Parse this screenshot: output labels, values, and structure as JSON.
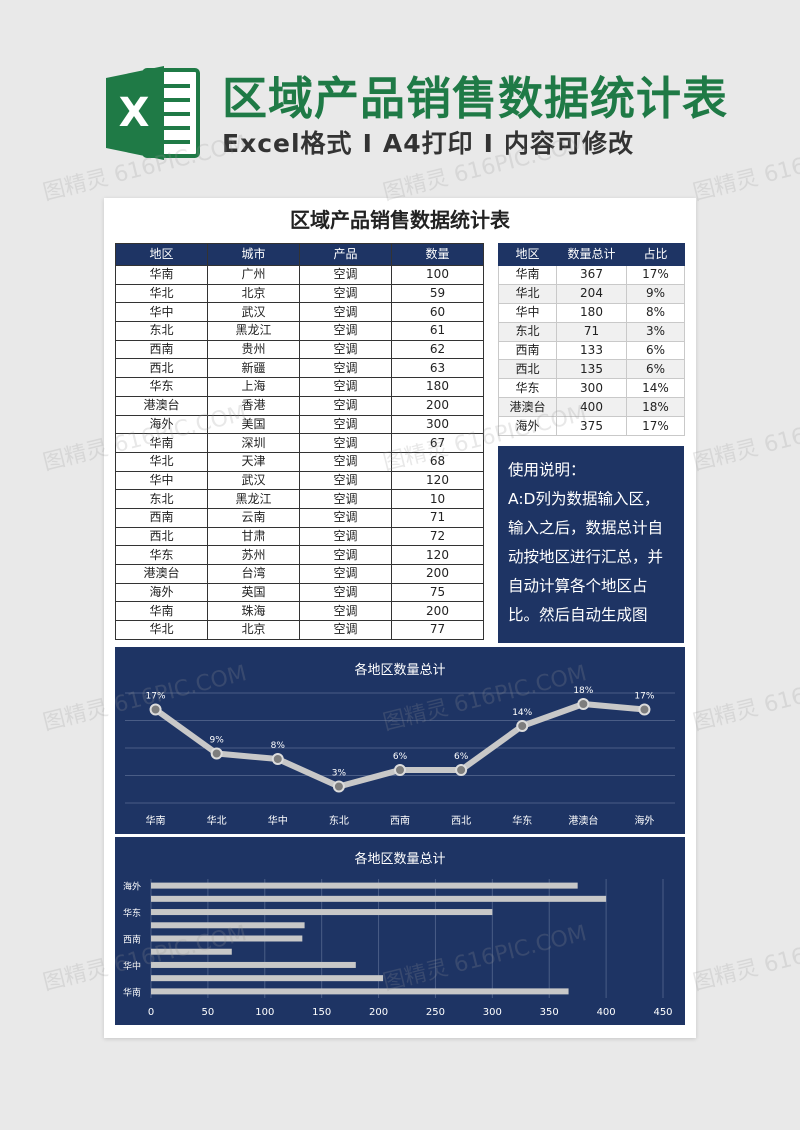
{
  "header": {
    "title": "区域产品销售数据统计表",
    "subtitle_parts": [
      "Excel格式",
      "A4打印",
      "内容可修改"
    ],
    "separator": "I",
    "logo_letter": "X"
  },
  "sheet": {
    "title": "区域产品销售数据统计表",
    "columns": [
      "地区",
      "城市",
      "产品",
      "数量"
    ],
    "rows": [
      [
        "华南",
        "广州",
        "空调",
        "100"
      ],
      [
        "华北",
        "北京",
        "空调",
        "59"
      ],
      [
        "华中",
        "武汉",
        "空调",
        "60"
      ],
      [
        "东北",
        "黑龙江",
        "空调",
        "61"
      ],
      [
        "西南",
        "贵州",
        "空调",
        "62"
      ],
      [
        "西北",
        "新疆",
        "空调",
        "63"
      ],
      [
        "华东",
        "上海",
        "空调",
        "180"
      ],
      [
        "港澳台",
        "香港",
        "空调",
        "200"
      ],
      [
        "海外",
        "美国",
        "空调",
        "300"
      ],
      [
        "华南",
        "深圳",
        "空调",
        "67"
      ],
      [
        "华北",
        "天津",
        "空调",
        "68"
      ],
      [
        "华中",
        "武汉",
        "空调",
        "120"
      ],
      [
        "东北",
        "黑龙江",
        "空调",
        "10"
      ],
      [
        "西南",
        "云南",
        "空调",
        "71"
      ],
      [
        "西北",
        "甘肃",
        "空调",
        "72"
      ],
      [
        "华东",
        "苏州",
        "空调",
        "120"
      ],
      [
        "港澳台",
        "台湾",
        "空调",
        "200"
      ],
      [
        "海外",
        "英国",
        "空调",
        "75"
      ],
      [
        "华南",
        "珠海",
        "空调",
        "200"
      ],
      [
        "华北",
        "北京",
        "空调",
        "77"
      ]
    ]
  },
  "summary": {
    "columns": [
      "地区",
      "数量总计",
      "占比"
    ],
    "rows": [
      [
        "华南",
        "367",
        "17%"
      ],
      [
        "华北",
        "204",
        "9%"
      ],
      [
        "华中",
        "180",
        "8%"
      ],
      [
        "东北",
        "71",
        "3%"
      ],
      [
        "西南",
        "133",
        "6%"
      ],
      [
        "西北",
        "135",
        "6%"
      ],
      [
        "华东",
        "300",
        "14%"
      ],
      [
        "港澳台",
        "400",
        "18%"
      ],
      [
        "海外",
        "375",
        "17%"
      ]
    ]
  },
  "notes": {
    "lines": [
      "使用说明：",
      "A:D列为数据输入区，",
      "输入之后，数据总计自",
      "动按地区进行汇总，并",
      "自动计算各个地区占",
      "比。然后自动生成图"
    ]
  },
  "watermark": "图精灵 616PIC.COM",
  "colors": {
    "navy": "#1e3464",
    "green": "#1f7a46",
    "line": "#c8c8c8",
    "bar": "#c8c8c8"
  },
  "chart_data": [
    {
      "type": "line",
      "title": "各地区数量总计",
      "categories": [
        "华南",
        "华北",
        "华中",
        "东北",
        "西南",
        "西北",
        "华东",
        "港澳台",
        "海外"
      ],
      "values": [
        17,
        9,
        8,
        3,
        6,
        6,
        14,
        18,
        17
      ],
      "data_labels": [
        "17%",
        "9%",
        "8%",
        "3%",
        "6%",
        "6%",
        "14%",
        "18%",
        "17%"
      ],
      "ylim": [
        0,
        20
      ],
      "grid": true
    },
    {
      "type": "bar",
      "orientation": "horizontal",
      "title": "各地区数量总计",
      "categories": [
        "华南",
        "华北",
        "华中",
        "东北",
        "西南",
        "西北",
        "华东",
        "港澳台",
        "海外"
      ],
      "values": [
        367,
        204,
        180,
        71,
        133,
        135,
        300,
        400,
        375
      ],
      "visible_category_labels": [
        "华南",
        "华中",
        "西南",
        "华东",
        "海外"
      ],
      "xticks": [
        "0",
        "50",
        "100",
        "150",
        "200",
        "250",
        "300",
        "350",
        "400",
        "450"
      ],
      "xlim": [
        0,
        450
      ],
      "grid": true
    }
  ]
}
